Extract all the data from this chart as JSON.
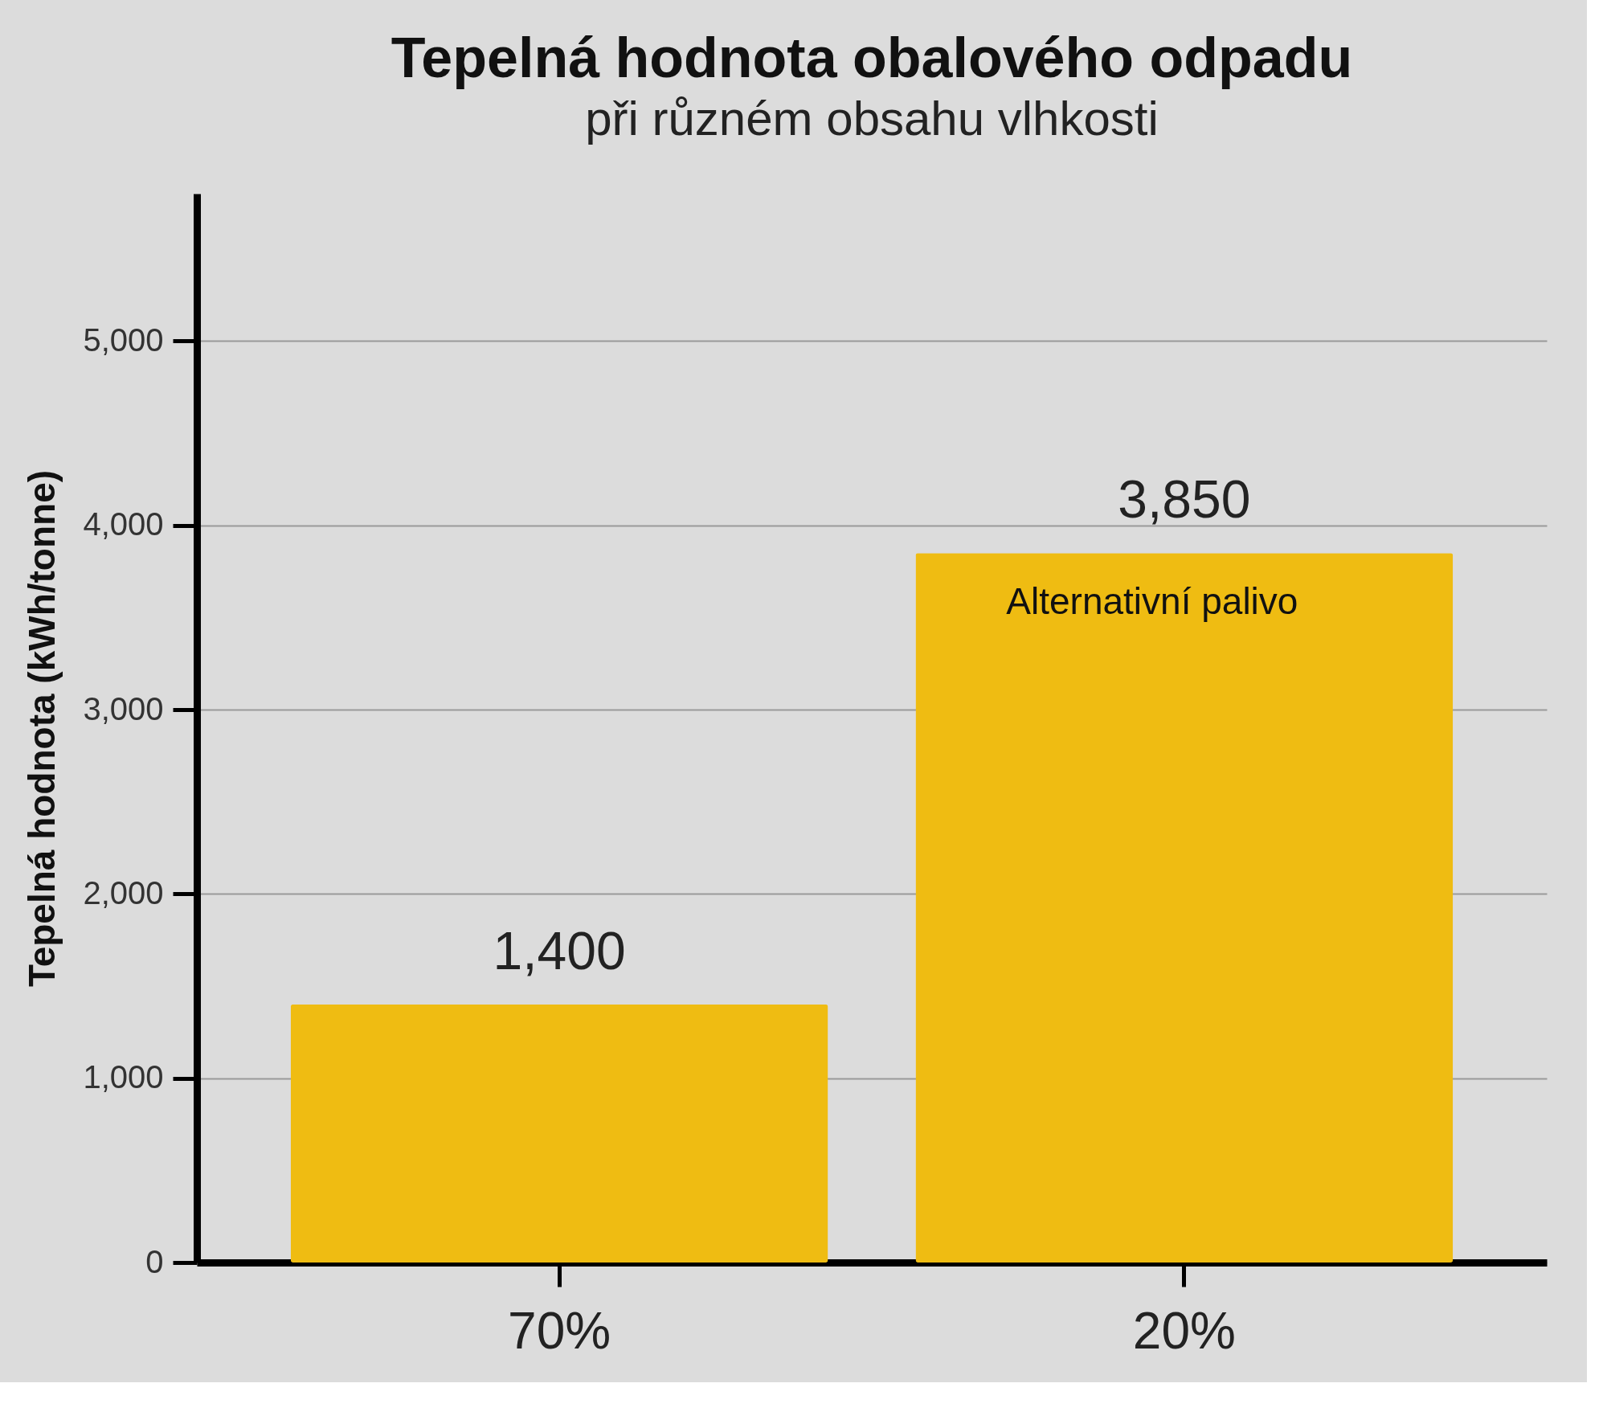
{
  "chart_data": {
    "type": "bar",
    "title": "Tepelná hodnota obalového odpadu",
    "subtitle": "při různém obsahu vlhkosti",
    "ylabel": "Tepelná hodnota (kWh/tonne)",
    "categories": [
      "70%",
      "20%"
    ],
    "values": [
      1400,
      3850
    ],
    "color": "#efbc12",
    "value_labels": [
      "1,400",
      "3,850"
    ],
    "annotations": [
      "Alternativní palivo"
    ],
    "ylim": [
      0,
      5800
    ],
    "yticks": [
      0,
      {
        "value": 1000,
        "label": "1,000"
      },
      {
        "value": 2000,
        "label": "2,000"
      },
      {
        "value": 3000,
        "label": "3,000"
      },
      {
        "value": 4000,
        "label": "4,000"
      },
      {
        "value": 5000,
        "label": "5,000"
      }
    ],
    "grid": "y"
  }
}
